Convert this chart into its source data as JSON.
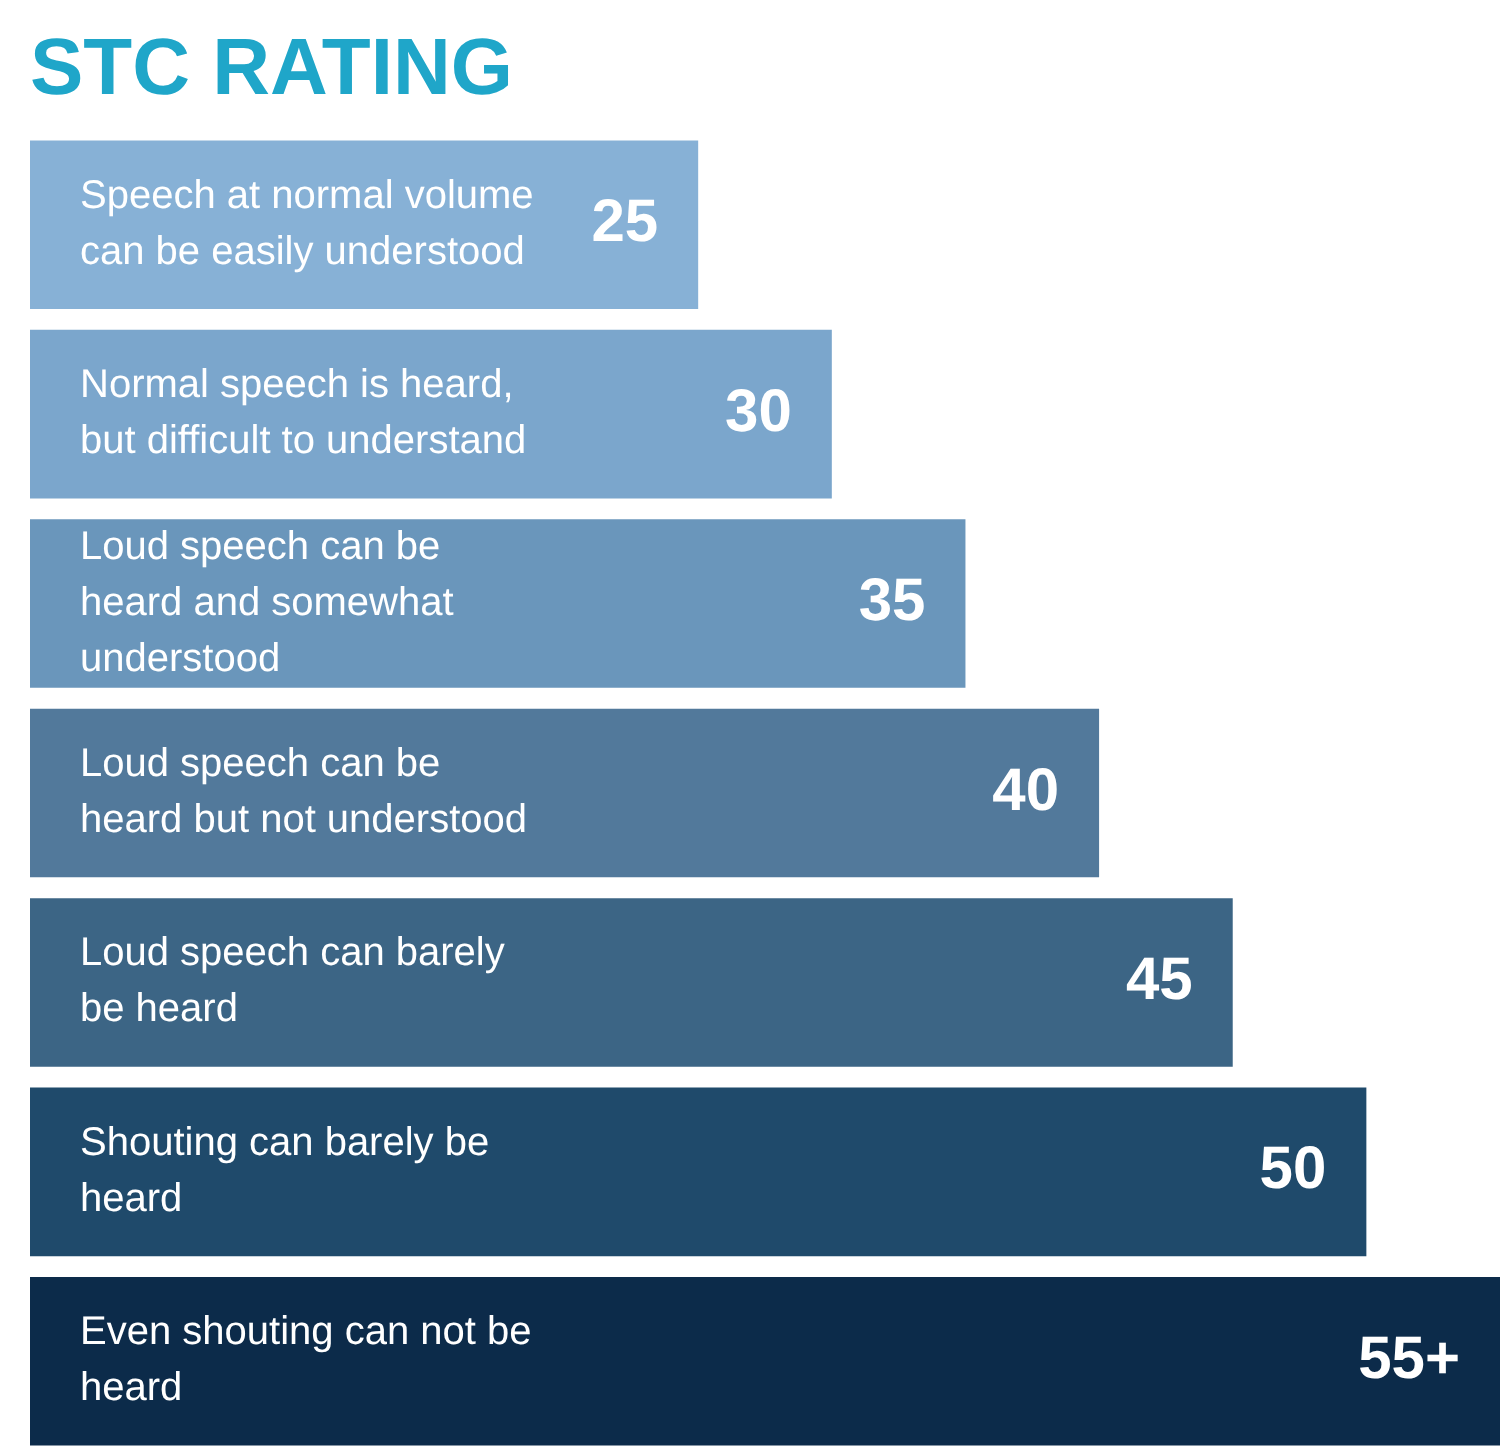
{
  "chart_data": {
    "type": "bar",
    "orientation": "horizontal",
    "title": "STC RATING",
    "categories": [
      "Speech at normal volume can be easily understood",
      "Normal speech is heard, but difficult to understand",
      "Loud speech can be heard and somewhat understood",
      "Loud speech can be heard but not understood",
      "Loud speech can barely be heard",
      "Shouting can barely be heard",
      "Even shouting can not be heard"
    ],
    "values": [
      25,
      30,
      35,
      40,
      45,
      50,
      55
    ],
    "value_labels": [
      "25",
      "30",
      "35",
      "40",
      "45",
      "50",
      "55+"
    ],
    "colors": [
      "#87b1d6",
      "#7ba6cc",
      "#6a96bb",
      "#52799b",
      "#3c6585",
      "#1f4a6b",
      "#0c2b4a"
    ],
    "tick_labels": false
  }
}
